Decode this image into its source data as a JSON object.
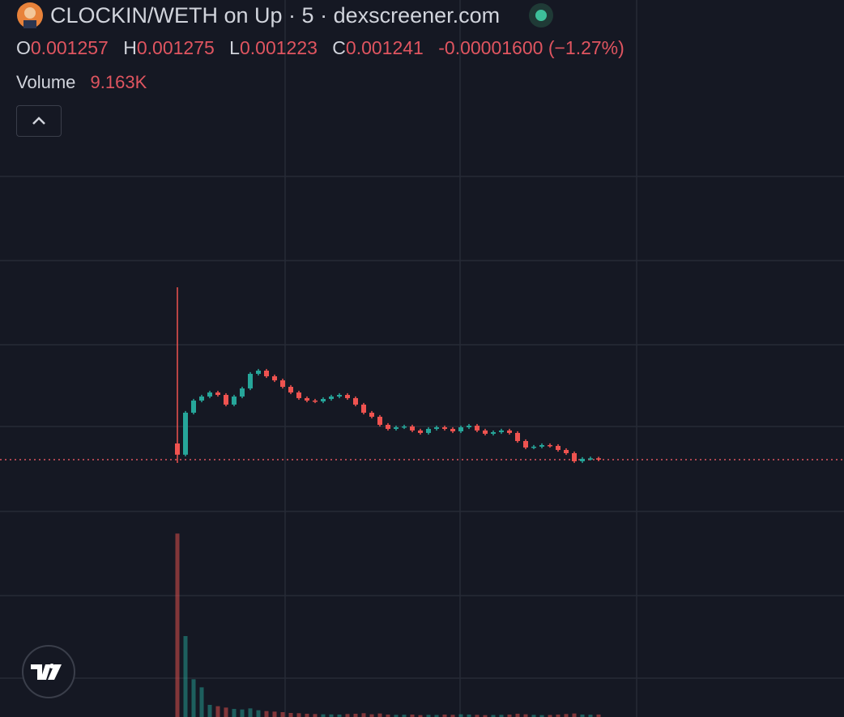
{
  "header": {
    "title": "CLOCKIN/WETH on Up · 5 · dexscreener.com",
    "open_label": "O",
    "high_label": "H",
    "low_label": "L",
    "close_label": "C",
    "change": "-0.00001600",
    "change_pct": "(−1.27%)",
    "volume_label": "Volume",
    "volume_value": "9.163K"
  },
  "chart_data": {
    "type": "candlestick",
    "open": [
      0.001433,
      0.0013,
      0.001798,
      0.001942,
      0.00199,
      0.002038,
      0.002009,
      0.001894,
      0.00199,
      0.002086,
      0.002259,
      0.002297,
      0.00223,
      0.002182,
      0.002105,
      0.002038,
      0.001971,
      0.001942,
      0.001932,
      0.001961,
      0.00199,
      0.002009,
      0.001971,
      0.001894,
      0.001798,
      0.00175,
      0.001654,
      0.001606,
      0.001625,
      0.001635,
      0.001587,
      0.001558,
      0.001606,
      0.001625,
      0.001606,
      0.001577,
      0.001625,
      0.001644,
      0.001587,
      0.001548,
      0.001567,
      0.001587,
      0.001558,
      0.001462,
      0.001385,
      0.001395,
      0.001414,
      0.001404,
      0.001356,
      0.001318,
      0.001222,
      0.001251,
      0.001257
    ],
    "high": [
      0.003286,
      0.001818,
      0.001962,
      0.00201,
      0.002058,
      0.002058,
      0.002029,
      0.00201,
      0.002106,
      0.002279,
      0.002317,
      0.002317,
      0.00225,
      0.002202,
      0.002125,
      0.002058,
      0.001991,
      0.001962,
      0.001981,
      0.00201,
      0.002029,
      0.002029,
      0.001991,
      0.001914,
      0.001818,
      0.00177,
      0.001674,
      0.001645,
      0.001655,
      0.001655,
      0.001607,
      0.001626,
      0.001645,
      0.001645,
      0.001626,
      0.001645,
      0.001664,
      0.001664,
      0.001607,
      0.001587,
      0.001607,
      0.001607,
      0.001578,
      0.001482,
      0.001415,
      0.001434,
      0.001434,
      0.001424,
      0.001376,
      0.001338,
      0.001271,
      0.001277,
      0.001275
    ],
    "low": [
      0.001203,
      0.00128,
      0.001778,
      0.001922,
      0.00197,
      0.001989,
      0.001874,
      0.001874,
      0.00197,
      0.002066,
      0.002239,
      0.00221,
      0.002162,
      0.002085,
      0.002018,
      0.001951,
      0.001922,
      0.001912,
      0.001912,
      0.001941,
      0.00197,
      0.001951,
      0.001874,
      0.001778,
      0.00173,
      0.001634,
      0.001586,
      0.001586,
      0.001605,
      0.001567,
      0.001538,
      0.001538,
      0.001586,
      0.001586,
      0.001557,
      0.001557,
      0.001605,
      0.001567,
      0.001528,
      0.001528,
      0.001547,
      0.001538,
      0.001442,
      0.001365,
      0.001365,
      0.001375,
      0.001384,
      0.001336,
      0.001298,
      0.001202,
      0.001202,
      0.001231,
      0.001223
    ],
    "close": [
      0.0013,
      0.001798,
      0.001942,
      0.00199,
      0.002038,
      0.002009,
      0.001894,
      0.00199,
      0.002086,
      0.002259,
      0.002297,
      0.00223,
      0.002182,
      0.002105,
      0.002038,
      0.001971,
      0.001942,
      0.001932,
      0.001961,
      0.00199,
      0.002009,
      0.001971,
      0.001894,
      0.001798,
      0.00175,
      0.001654,
      0.001606,
      0.001625,
      0.001635,
      0.001587,
      0.001558,
      0.001606,
      0.001625,
      0.001606,
      0.001577,
      0.001625,
      0.001644,
      0.001587,
      0.001548,
      0.001567,
      0.001587,
      0.001558,
      0.001462,
      0.001385,
      0.001395,
      0.001414,
      0.001404,
      0.001356,
      0.001318,
      0.001222,
      0.001251,
      0.001257,
      0.001241
    ],
    "volume": [
      680000,
      300000,
      140000,
      110000,
      45000,
      40000,
      35000,
      30000,
      28000,
      32000,
      25000,
      22000,
      20000,
      18000,
      15000,
      14000,
      12000,
      11000,
      10000,
      9500,
      9000,
      11000,
      12000,
      14000,
      10000,
      13000,
      9000,
      8000,
      8500,
      9000,
      7000,
      8000,
      7500,
      9000,
      8000,
      10000,
      9000,
      8000,
      7000,
      7500,
      8000,
      9000,
      12000,
      10000,
      8000,
      7000,
      7500,
      9000,
      11000,
      13000,
      9000,
      8500,
      9163
    ],
    "up_color": "#26a69a",
    "down_color": "#ef5350"
  }
}
